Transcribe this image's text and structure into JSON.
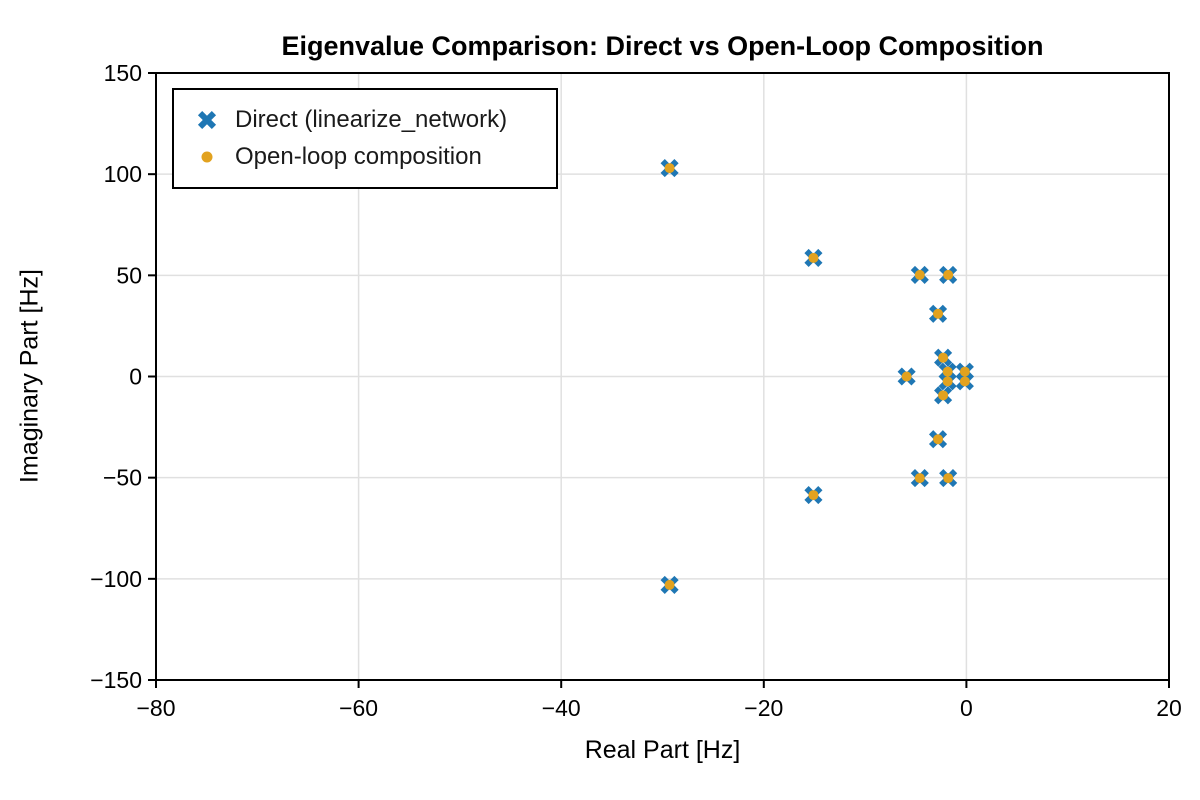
{
  "figure": {
    "background": "#ffffff",
    "frame_color": "#000000"
  },
  "chart_data": {
    "type": "scatter",
    "title": "Eigenvalue Comparison: Direct vs Open-Loop Composition",
    "xlabel": "Real Part [Hz]",
    "ylabel": "Imaginary Part [Hz]",
    "xlim": [
      -80,
      20
    ],
    "ylim": [
      -150,
      150
    ],
    "xticks": [
      -80,
      -60,
      -40,
      -20,
      0,
      20
    ],
    "xtick_labels": [
      "−80",
      "−60",
      "−40",
      "−20",
      "0",
      "20"
    ],
    "yticks": [
      -150,
      -100,
      -50,
      0,
      50,
      100,
      150
    ],
    "ytick_labels": [
      "−150",
      "−100",
      "−50",
      "0",
      "50",
      "100",
      "150"
    ],
    "grid": true,
    "grid_color": "#e0e0e0",
    "legend_position": "upper-left",
    "series": [
      {
        "name": "Direct (linearize_network)",
        "marker": "X",
        "color": "#1f77b4",
        "points": [
          [
            -29.3,
            103.0
          ],
          [
            -29.3,
            -103.0
          ],
          [
            -15.1,
            58.6
          ],
          [
            -15.1,
            -58.6
          ],
          [
            -4.6,
            50.2
          ],
          [
            -1.8,
            50.2
          ],
          [
            -4.6,
            -50.2
          ],
          [
            -1.8,
            -50.2
          ],
          [
            -2.8,
            31.0
          ],
          [
            -2.8,
            -31.0
          ],
          [
            -2.3,
            9.3
          ],
          [
            -2.3,
            -9.3
          ],
          [
            -5.9,
            0.0
          ],
          [
            -1.85,
            2.4
          ],
          [
            -1.85,
            -2.4
          ],
          [
            -0.15,
            2.4
          ],
          [
            -0.15,
            -2.4
          ]
        ]
      },
      {
        "name": "Open-loop composition",
        "marker": "circle",
        "color": "#e2a21f",
        "points": [
          [
            -29.3,
            103.0
          ],
          [
            -29.3,
            -103.0
          ],
          [
            -15.1,
            58.6
          ],
          [
            -15.1,
            -58.6
          ],
          [
            -4.6,
            50.2
          ],
          [
            -1.8,
            50.2
          ],
          [
            -4.6,
            -50.2
          ],
          [
            -1.8,
            -50.2
          ],
          [
            -2.8,
            31.0
          ],
          [
            -2.8,
            -31.0
          ],
          [
            -2.3,
            9.3
          ],
          [
            -2.3,
            -9.3
          ],
          [
            -5.9,
            0.0
          ],
          [
            -1.85,
            2.4
          ],
          [
            -1.85,
            -2.4
          ],
          [
            -0.15,
            2.4
          ],
          [
            -0.15,
            -2.4
          ]
        ]
      }
    ]
  }
}
